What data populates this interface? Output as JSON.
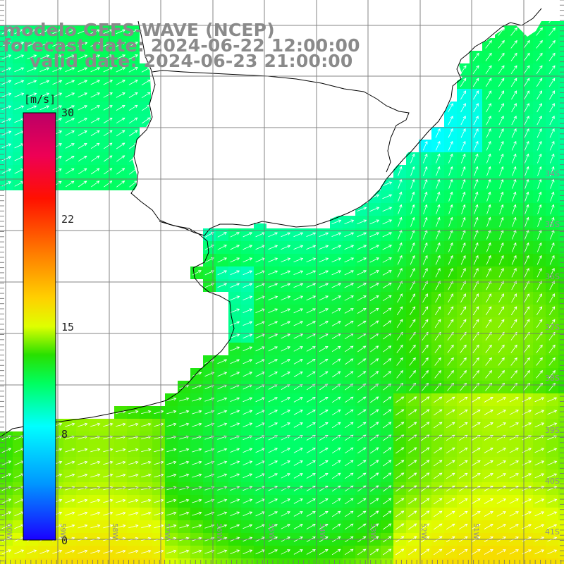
{
  "title": {
    "model": "modelo GEFS-WAVE (NCEP)",
    "forecast": "forecast date: 2024-06-22 12:00:00",
    "valid": "valid date: 2024-06-23 21:00:00"
  },
  "colorbar": {
    "unit": "[m/s]",
    "min": 0,
    "max": 30,
    "ticks": [
      {
        "value": 30,
        "label": "30"
      },
      {
        "value": 22,
        "label": "22"
      },
      {
        "value": 15,
        "label": "15"
      },
      {
        "value": 8,
        "label": "8"
      },
      {
        "value": 0,
        "label": "0"
      }
    ],
    "stops": [
      {
        "v": 0,
        "c": "#1a00ff"
      },
      {
        "v": 4,
        "c": "#0098ff"
      },
      {
        "v": 8,
        "c": "#00ffff"
      },
      {
        "v": 11,
        "c": "#00ff60"
      },
      {
        "v": 13,
        "c": "#28e000"
      },
      {
        "v": 15,
        "c": "#dfff00"
      },
      {
        "v": 17,
        "c": "#ffd000"
      },
      {
        "v": 20,
        "c": "#ff8000"
      },
      {
        "v": 24,
        "c": "#ff1000"
      },
      {
        "v": 27,
        "c": "#ee0055"
      },
      {
        "v": 30,
        "c": "#bb0066"
      }
    ]
  },
  "lat_labels": [
    "34S",
    "35S",
    "36S",
    "37S",
    "38S",
    "39S",
    "40S",
    "41S"
  ],
  "lon_labels": [
    "60W",
    "59W",
    "58W",
    "57W",
    "56W",
    "55W",
    "54W",
    "53W",
    "52W",
    "51W"
  ],
  "colors": {
    "land": "#ffffff",
    "coast": "#000000",
    "grid": "#707070",
    "arrow": "#ffffff",
    "title": "#8a8a8a"
  }
}
